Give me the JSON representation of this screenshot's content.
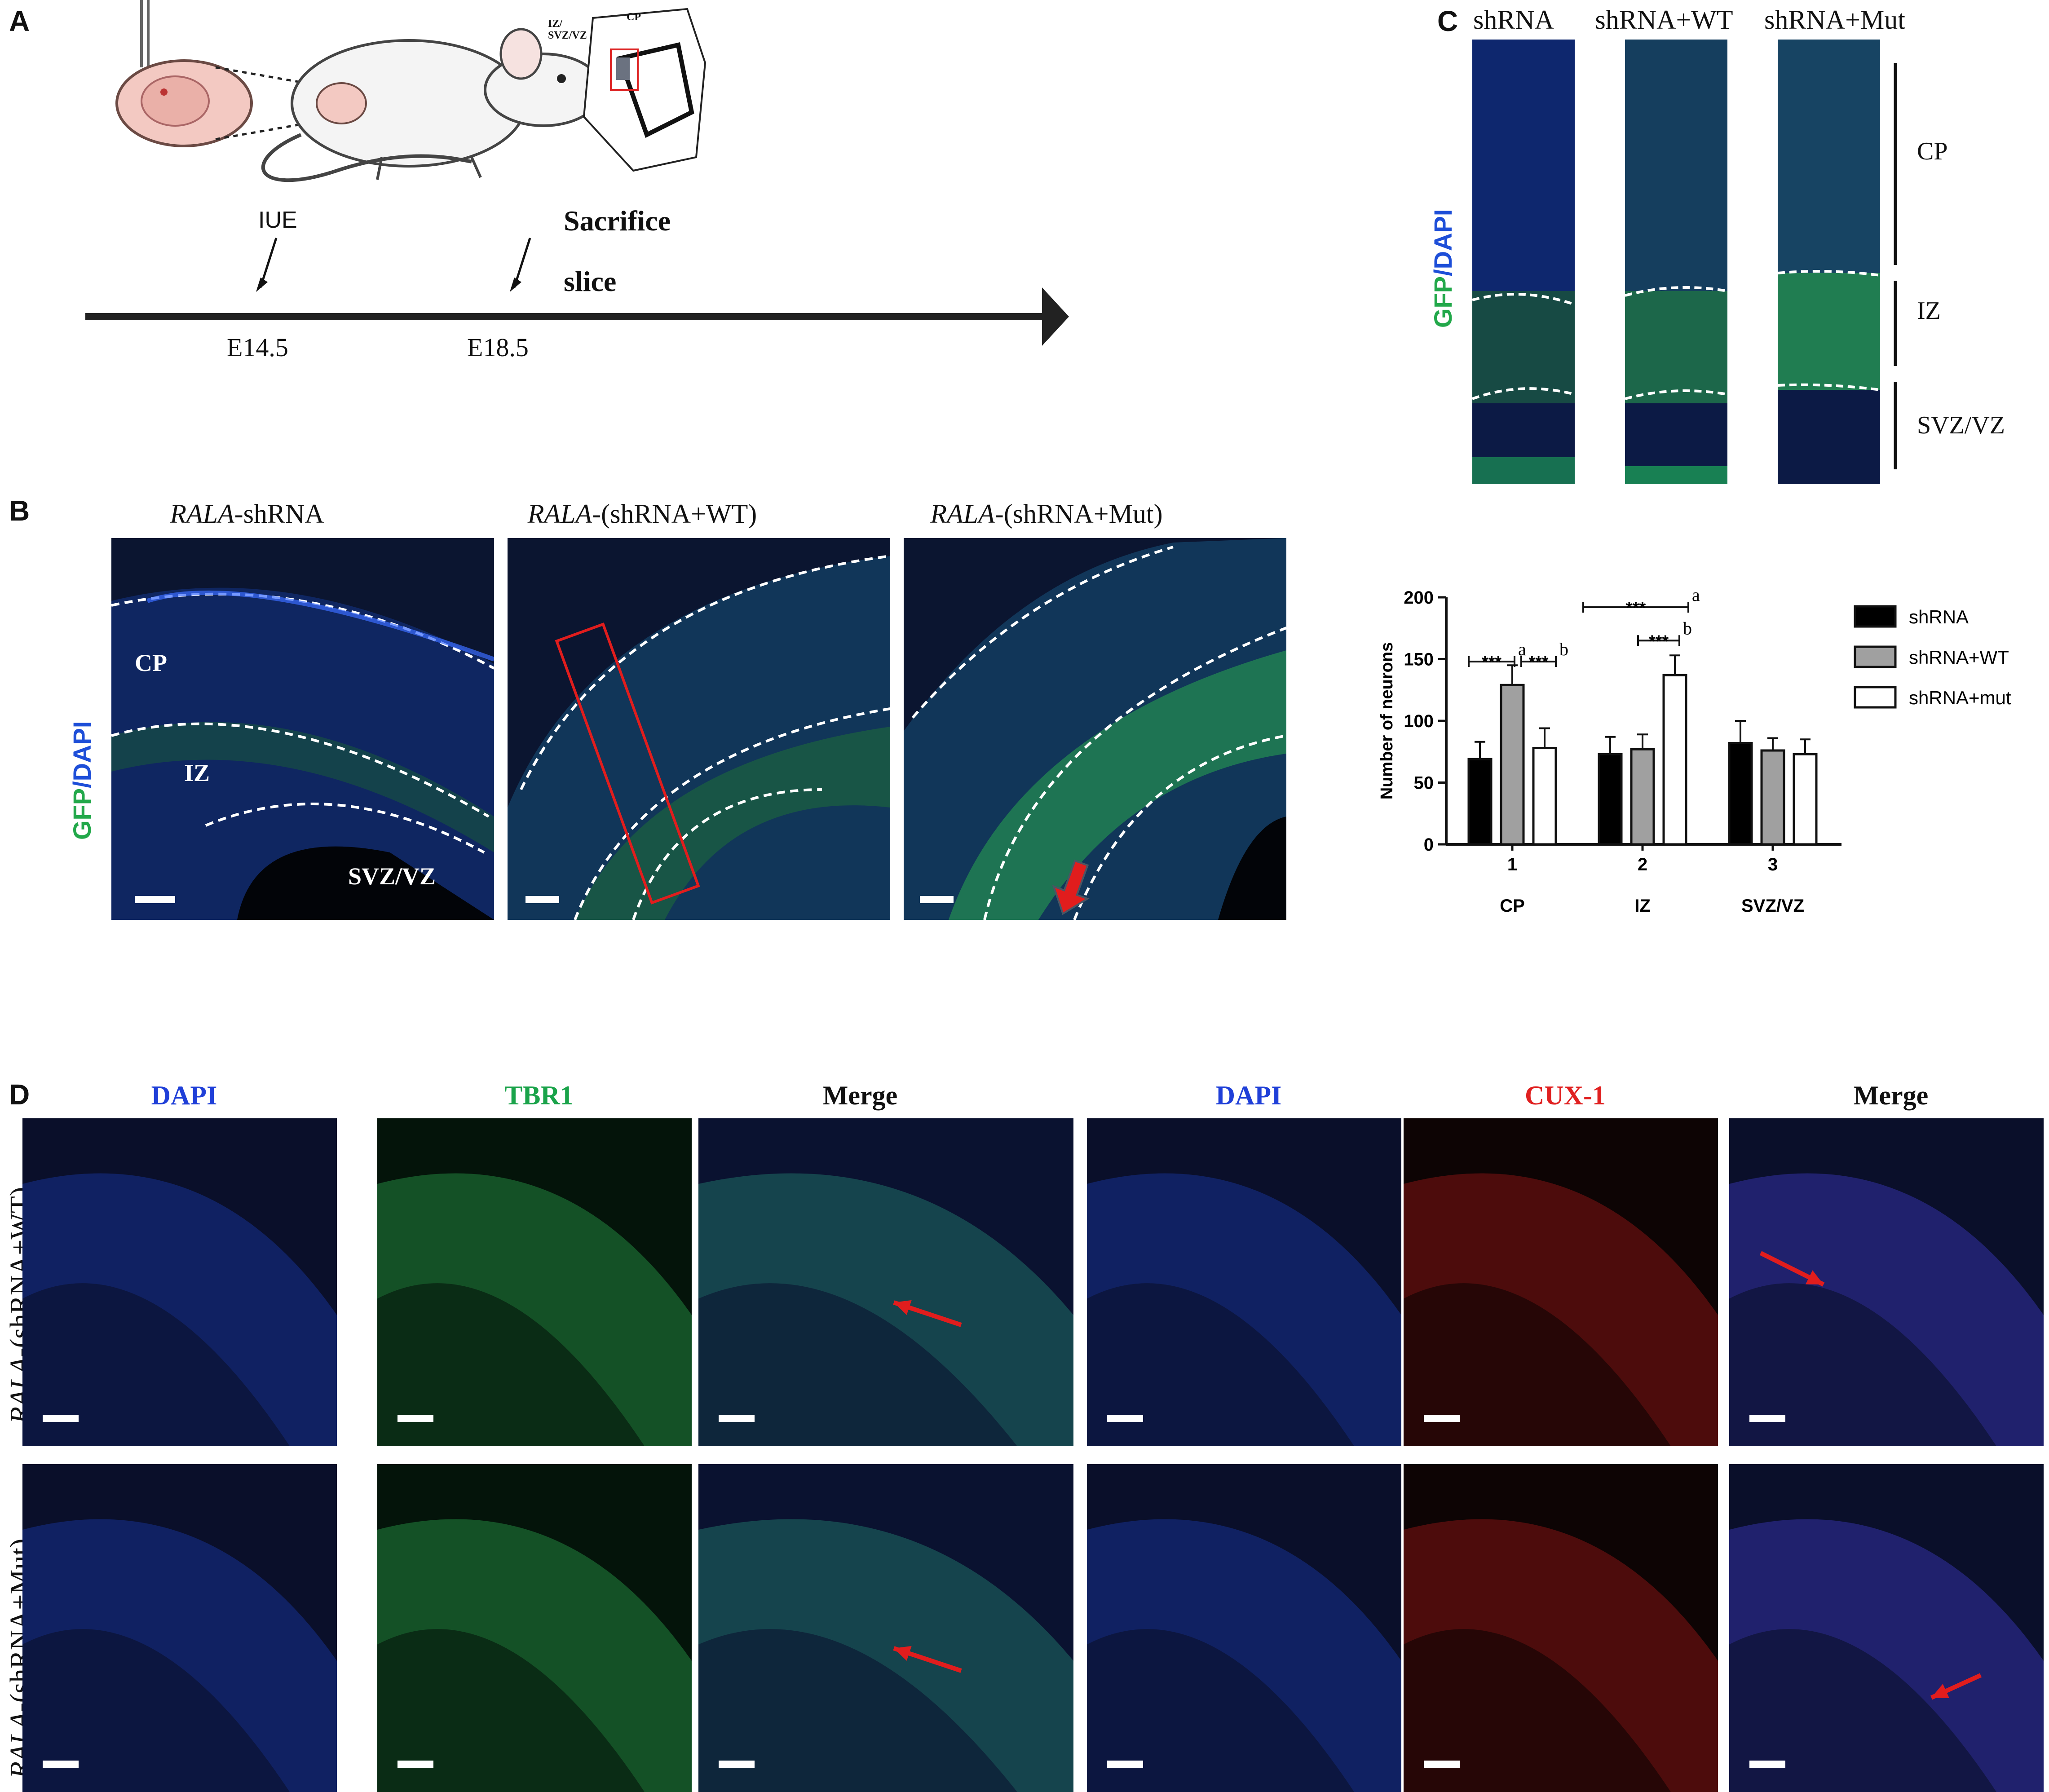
{
  "panel_letters": {
    "A": "A",
    "B": "B",
    "C": "C",
    "D": "D"
  },
  "panelA": {
    "timepoints": [
      "E14.5",
      "E18.5"
    ],
    "iue_label": "IUE",
    "sacrifice_label": "Sacrifice",
    "slice_label": "slice",
    "inset_labels": {
      "zones": "IZ/ SVZ/VZ",
      "cp": "CP"
    }
  },
  "panelB": {
    "column_titles": [
      {
        "italic": "RALA",
        "rest": "-shRNA"
      },
      {
        "italic": "RALA",
        "rest": "-(shRNA+WT)"
      },
      {
        "italic": "RALA",
        "rest": "-(shRNA+Mut)"
      }
    ],
    "stain_label": {
      "gfp": "GFP",
      "sep": "/",
      "dapi": "DAPI"
    },
    "zone_labels": [
      "CP",
      "IZ",
      "SVZ/VZ"
    ]
  },
  "panelC": {
    "column_titles": [
      "shRNA",
      "shRNA+WT",
      "shRNA+Mut"
    ],
    "stain_label": {
      "gfp": "GFP",
      "sep": "/",
      "dapi": "DAPI"
    },
    "zone_labels": [
      "CP",
      "IZ",
      "SVZ/VZ"
    ]
  },
  "chart_data": {
    "type": "bar",
    "categories": [
      "1",
      "2",
      "3"
    ],
    "category_sublabels": [
      "CP",
      "IZ",
      "SVZ/VZ"
    ],
    "series": [
      {
        "name": "shRNA",
        "values": [
          69,
          73,
          82
        ],
        "errors": [
          14,
          14,
          18
        ],
        "color": "#000000"
      },
      {
        "name": "shRNA+WT",
        "values": [
          129,
          77,
          76
        ],
        "errors": [
          16,
          12,
          10
        ],
        "color": "#a0a0a0"
      },
      {
        "name": "shRNA+mut",
        "values": [
          78,
          137,
          73
        ],
        "errors": [
          16,
          16,
          12
        ],
        "color": "#ffffff"
      }
    ],
    "ylabel": "Number of neurons",
    "ylim": [
      0,
      200
    ],
    "yticks": [
      0,
      50,
      100,
      150,
      200
    ],
    "legend_position": "right",
    "annotations": [
      {
        "text": "***",
        "letter": "a"
      },
      {
        "text": "***",
        "letter": "b"
      },
      {
        "text": "***",
        "letter": "a"
      },
      {
        "text": "***",
        "letter": "b"
      }
    ]
  },
  "panelD": {
    "left_headers": [
      "DAPI",
      "TBR1",
      "Merge"
    ],
    "right_headers": [
      "DAPI",
      "CUX-1",
      "Merge"
    ],
    "header_colors": {
      "DAPI": "#1f3fd8",
      "TBR1": "#1aa34a",
      "Merge": "#111111",
      "CUX-1": "#e02020"
    },
    "row_labels": [
      {
        "italic": "RALA",
        "rest": "-(shRNA+WT)"
      },
      {
        "italic": "RALA",
        "rest": "-(shRNA+Mut)"
      }
    ]
  },
  "colors": {
    "gfp": "#22c55e",
    "dapi": "#1d4ed8",
    "arrow": "#e11d1d"
  }
}
